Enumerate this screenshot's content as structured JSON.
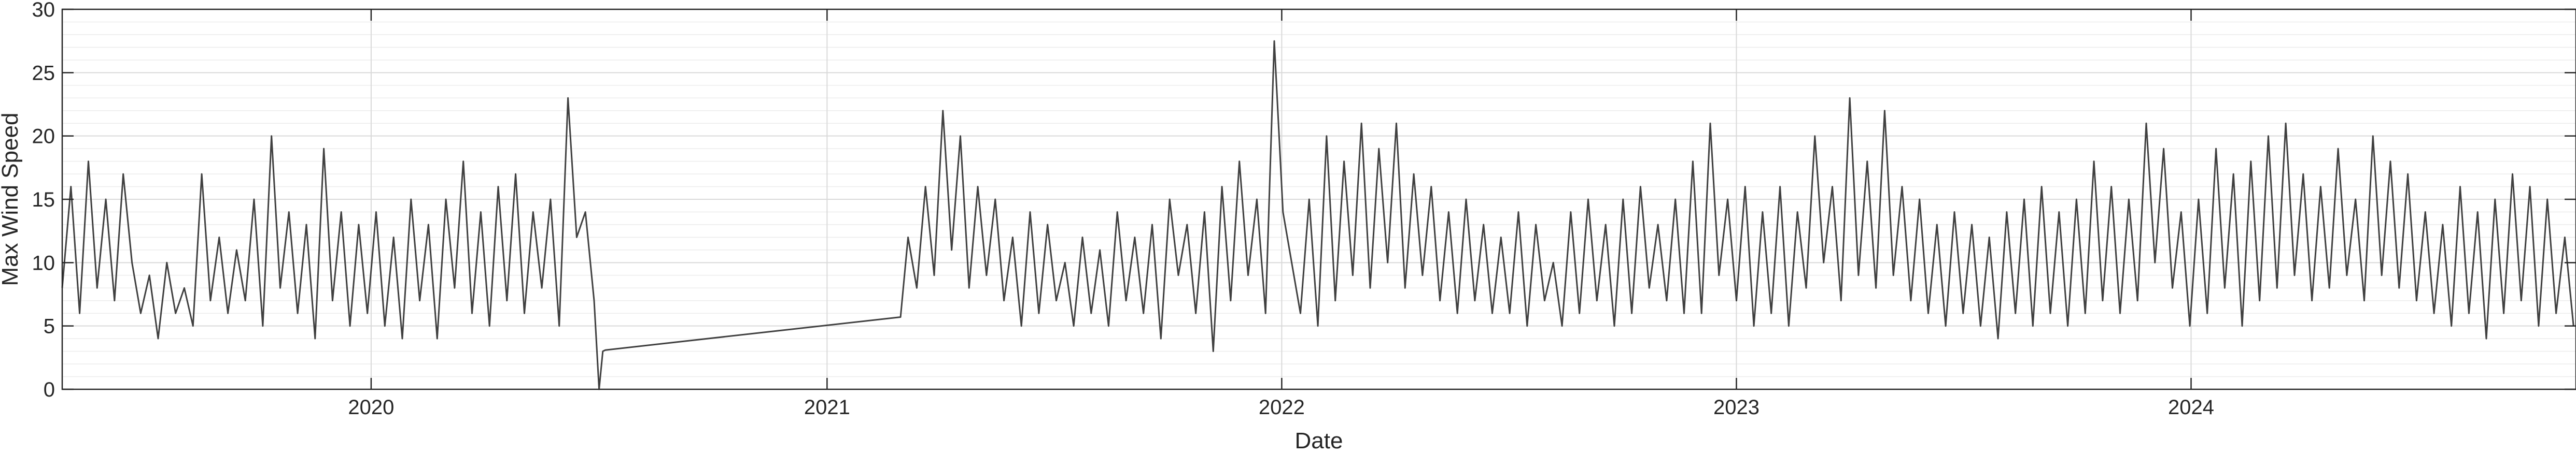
{
  "chart_data": {
    "type": "line",
    "title": "",
    "xlabel": "Date",
    "ylabel": "Max Wind Speed",
    "ylim": [
      0,
      30
    ],
    "xlim": [
      "2019-04-28",
      "2024-11-05"
    ],
    "yticks": [
      0,
      5,
      10,
      15,
      20,
      25,
      30
    ],
    "xticks": [
      {
        "label": "2020",
        "date": "2020-01-01"
      },
      {
        "label": "2021",
        "date": "2021-01-01"
      },
      {
        "label": "2022",
        "date": "2022-01-01"
      },
      {
        "label": "2023",
        "date": "2023-01-01"
      },
      {
        "label": "2024",
        "date": "2024-01-01"
      }
    ],
    "grid": true,
    "minor_grid": true,
    "line_color": "#404040",
    "series": [
      {
        "x": [
          "2019-04-28",
          "2019-05-05",
          "2019-05-12",
          "2019-05-19",
          "2019-05-26",
          "2019-06-02",
          "2019-06-09",
          "2019-06-16",
          "2019-06-23",
          "2019-06-30",
          "2019-07-07",
          "2019-07-14",
          "2019-07-21",
          "2019-07-28",
          "2019-08-04",
          "2019-08-11",
          "2019-08-18",
          "2019-08-25",
          "2019-09-01",
          "2019-09-08",
          "2019-09-15",
          "2019-09-22",
          "2019-09-29",
          "2019-10-06",
          "2019-10-13",
          "2019-10-20",
          "2019-10-27",
          "2019-11-03",
          "2019-11-10",
          "2019-11-17",
          "2019-11-24",
          "2019-12-01",
          "2019-12-08",
          "2019-12-15",
          "2019-12-22",
          "2019-12-29",
          "2020-01-05",
          "2020-01-12",
          "2020-01-19",
          "2020-01-26",
          "2020-02-02",
          "2020-02-09",
          "2020-02-16",
          "2020-02-23",
          "2020-03-01",
          "2020-03-08",
          "2020-03-15",
          "2020-03-22",
          "2020-03-29",
          "2020-04-05",
          "2020-04-12",
          "2020-04-19",
          "2020-04-26",
          "2020-05-03",
          "2020-05-10",
          "2020-05-17",
          "2020-05-24",
          "2020-05-31",
          "2020-06-07",
          "2020-06-14",
          "2020-06-21",
          "2020-06-28",
          "2020-07-02",
          "2020-07-05",
          "2020-07-07",
          "2021-03-01",
          "2021-03-07",
          "2021-03-14",
          "2021-03-21",
          "2021-03-28",
          "2021-04-04",
          "2021-04-11",
          "2021-04-18",
          "2021-04-25",
          "2021-05-02",
          "2021-05-09",
          "2021-05-16",
          "2021-05-23",
          "2021-05-30",
          "2021-06-06",
          "2021-06-13",
          "2021-06-20",
          "2021-06-27",
          "2021-07-04",
          "2021-07-11",
          "2021-07-18",
          "2021-07-25",
          "2021-08-01",
          "2021-08-08",
          "2021-08-15",
          "2021-08-22",
          "2021-08-29",
          "2021-09-05",
          "2021-09-12",
          "2021-09-19",
          "2021-09-26",
          "2021-10-03",
          "2021-10-10",
          "2021-10-17",
          "2021-10-24",
          "2021-10-31",
          "2021-11-07",
          "2021-11-14",
          "2021-11-21",
          "2021-11-28",
          "2021-12-05",
          "2021-12-12",
          "2021-12-19",
          "2021-12-26",
          "2022-01-02",
          "2022-01-09",
          "2022-01-16",
          "2022-01-23",
          "2022-01-30",
          "2022-02-06",
          "2022-02-13",
          "2022-02-20",
          "2022-02-27",
          "2022-03-06",
          "2022-03-13",
          "2022-03-20",
          "2022-03-27",
          "2022-04-03",
          "2022-04-10",
          "2022-04-17",
          "2022-04-24",
          "2022-05-01",
          "2022-05-08",
          "2022-05-15",
          "2022-05-22",
          "2022-05-29",
          "2022-06-05",
          "2022-06-12",
          "2022-06-19",
          "2022-06-26",
          "2022-07-03",
          "2022-07-10",
          "2022-07-17",
          "2022-07-24",
          "2022-07-31",
          "2022-08-07",
          "2022-08-14",
          "2022-08-21",
          "2022-08-28",
          "2022-09-04",
          "2022-09-11",
          "2022-09-18",
          "2022-09-25",
          "2022-10-02",
          "2022-10-09",
          "2022-10-16",
          "2022-10-23",
          "2022-10-30",
          "2022-11-06",
          "2022-11-13",
          "2022-11-20",
          "2022-11-27",
          "2022-12-04",
          "2022-12-11",
          "2022-12-18",
          "2022-12-25",
          "2023-01-01",
          "2023-01-08",
          "2023-01-15",
          "2023-01-22",
          "2023-01-29",
          "2023-02-05",
          "2023-02-12",
          "2023-02-19",
          "2023-02-26",
          "2023-03-05",
          "2023-03-12",
          "2023-03-19",
          "2023-03-26",
          "2023-04-02",
          "2023-04-09",
          "2023-04-16",
          "2023-04-23",
          "2023-04-30",
          "2023-05-07",
          "2023-05-14",
          "2023-05-21",
          "2023-05-28",
          "2023-06-04",
          "2023-06-11",
          "2023-06-18",
          "2023-06-25",
          "2023-07-02",
          "2023-07-09",
          "2023-07-16",
          "2023-07-23",
          "2023-07-30",
          "2023-08-06",
          "2023-08-13",
          "2023-08-20",
          "2023-08-27",
          "2023-09-03",
          "2023-09-10",
          "2023-09-17",
          "2023-09-24",
          "2023-10-01",
          "2023-10-08",
          "2023-10-15",
          "2023-10-22",
          "2023-10-29",
          "2023-11-05",
          "2023-11-12",
          "2023-11-19",
          "2023-11-26",
          "2023-12-03",
          "2023-12-10",
          "2023-12-17",
          "2023-12-24",
          "2023-12-31",
          "2024-01-07",
          "2024-01-14",
          "2024-01-21",
          "2024-01-28",
          "2024-02-04",
          "2024-02-11",
          "2024-02-18",
          "2024-02-25",
          "2024-03-03",
          "2024-03-10",
          "2024-03-17",
          "2024-03-24",
          "2024-03-31",
          "2024-04-07",
          "2024-04-14",
          "2024-04-21",
          "2024-04-28",
          "2024-05-05",
          "2024-05-12",
          "2024-05-19",
          "2024-05-26",
          "2024-06-02",
          "2024-06-09",
          "2024-06-16",
          "2024-06-23",
          "2024-06-30",
          "2024-07-07",
          "2024-07-14",
          "2024-07-21",
          "2024-07-28",
          "2024-08-04",
          "2024-08-11",
          "2024-08-18",
          "2024-08-25",
          "2024-09-01",
          "2024-09-08",
          "2024-09-15",
          "2024-09-22",
          "2024-09-29",
          "2024-10-06",
          "2024-10-13",
          "2024-10-20",
          "2024-10-27",
          "2024-11-03"
        ],
        "y": [
          8,
          16,
          6,
          18,
          8,
          15,
          7,
          17,
          10,
          6,
          9,
          4,
          10,
          6,
          8,
          5,
          17,
          7,
          12,
          6,
          11,
          7,
          15,
          5,
          20,
          8,
          14,
          6,
          13,
          4,
          19,
          7,
          14,
          5,
          13,
          6,
          14,
          5,
          12,
          4,
          15,
          7,
          13,
          4,
          15,
          8,
          18,
          6,
          14,
          5,
          16,
          7,
          17,
          6,
          14,
          8,
          15,
          5,
          23,
          12,
          14,
          7,
          0,
          3,
          3.1,
          5.7,
          12,
          8,
          16,
          9,
          22,
          11,
          20,
          8,
          16,
          9,
          15,
          7,
          12,
          5,
          14,
          6,
          13,
          7,
          10,
          5,
          12,
          6,
          11,
          5,
          14,
          7,
          12,
          6,
          13,
          4,
          15,
          9,
          13,
          6,
          14,
          3,
          16,
          7,
          18,
          9,
          15,
          6,
          27.5,
          14,
          10,
          6,
          15,
          5,
          20,
          7,
          18,
          9,
          21,
          8,
          19,
          10,
          21,
          8,
          17,
          9,
          16,
          7,
          14,
          6,
          15,
          7,
          13,
          6,
          12,
          6,
          14,
          5,
          13,
          7,
          10,
          5,
          14,
          6,
          15,
          7,
          13,
          5,
          15,
          6,
          16,
          8,
          13,
          7,
          15,
          6,
          18,
          6,
          21,
          9,
          15,
          7,
          16,
          5,
          14,
          6,
          16,
          5,
          14,
          8,
          20,
          10,
          16,
          7,
          23,
          9,
          18,
          8,
          22,
          9,
          16,
          7,
          15,
          6,
          13,
          5,
          14,
          6,
          13,
          5,
          12,
          4,
          14,
          6,
          15,
          5,
          16,
          6,
          14,
          5,
          15,
          6,
          18,
          7,
          16,
          6,
          15,
          7,
          21,
          10,
          19,
          8,
          14,
          5,
          15,
          6,
          19,
          8,
          17,
          5,
          18,
          7,
          20,
          8,
          21,
          9,
          17,
          7,
          16,
          8,
          19,
          9,
          15,
          7,
          20,
          9,
          18,
          8,
          17,
          7,
          14,
          6,
          13,
          5,
          16,
          6,
          14,
          4,
          15,
          6,
          17,
          7,
          16,
          5,
          15,
          6,
          12,
          5
        ]
      }
    ]
  }
}
